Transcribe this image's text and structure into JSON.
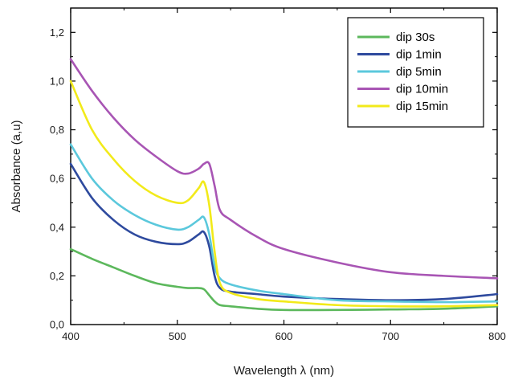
{
  "chart_data": {
    "type": "line",
    "title": "",
    "xlabel": "Wavelength λ  (nm)",
    "ylabel": "Absorbance (a,u)",
    "xlim": [
      400,
      800
    ],
    "ylim": [
      0.0,
      1.3
    ],
    "xticks": [
      400,
      500,
      600,
      700,
      800
    ],
    "xtick_labels": [
      "400",
      "500",
      "600",
      "700",
      "800"
    ],
    "yticks": [
      0.0,
      0.2,
      0.4,
      0.6,
      0.8,
      1.0,
      1.2
    ],
    "ytick_labels": [
      "0,0",
      "0,2",
      "0,4",
      "0,6",
      "0,8",
      "1,0",
      "1,2"
    ],
    "grid": false,
    "legend_position": "top-right",
    "x": [
      400,
      420,
      440,
      460,
      480,
      500,
      510,
      520,
      525,
      530,
      535,
      540,
      550,
      575,
      600,
      650,
      700,
      750,
      800
    ],
    "series": [
      {
        "name": "dip 30s",
        "color": "#5cb85c",
        "values": [
          0.31,
          0.27,
          0.235,
          0.2,
          0.17,
          0.155,
          0.15,
          0.15,
          0.145,
          0.12,
          0.095,
          0.08,
          0.075,
          0.065,
          0.06,
          0.06,
          0.062,
          0.065,
          0.075
        ]
      },
      {
        "name": "dip 1min",
        "color": "#2e4a9e",
        "values": [
          0.66,
          0.52,
          0.43,
          0.37,
          0.34,
          0.33,
          0.34,
          0.37,
          0.38,
          0.32,
          0.2,
          0.15,
          0.135,
          0.125,
          0.115,
          0.105,
          0.1,
          0.105,
          0.125
        ]
      },
      {
        "name": "dip 5min",
        "color": "#5bc8dc",
        "values": [
          0.74,
          0.6,
          0.51,
          0.45,
          0.41,
          0.39,
          0.4,
          0.43,
          0.44,
          0.37,
          0.24,
          0.19,
          0.165,
          0.14,
          0.125,
          0.1,
          0.095,
          0.092,
          0.095
        ]
      },
      {
        "name": "dip 10min",
        "color": "#a855b4",
        "values": [
          1.09,
          0.96,
          0.85,
          0.76,
          0.69,
          0.63,
          0.62,
          0.64,
          0.66,
          0.66,
          0.57,
          0.47,
          0.43,
          0.36,
          0.31,
          0.255,
          0.215,
          0.2,
          0.19
        ]
      },
      {
        "name": "dip 15min",
        "color": "#f2ea1a",
        "values": [
          1.0,
          0.8,
          0.68,
          0.59,
          0.53,
          0.5,
          0.51,
          0.56,
          0.585,
          0.49,
          0.3,
          0.17,
          0.13,
          0.105,
          0.095,
          0.08,
          0.075,
          0.075,
          0.08
        ]
      }
    ]
  }
}
